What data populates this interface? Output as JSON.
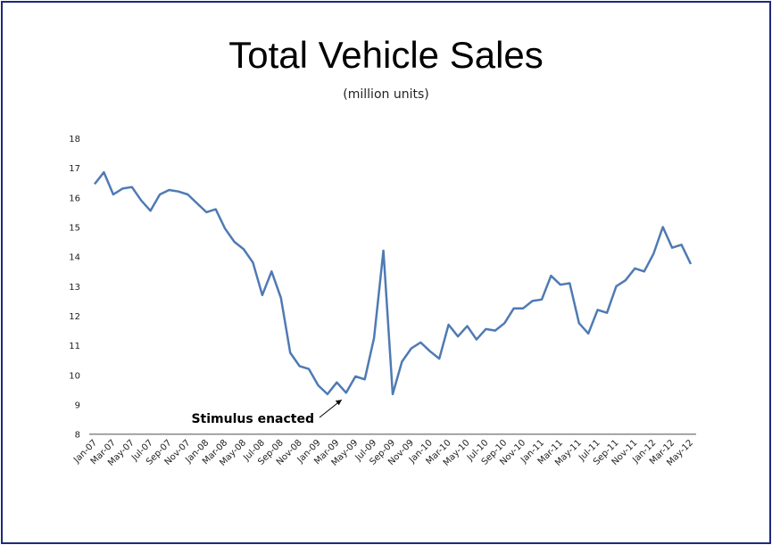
{
  "chart_data": {
    "type": "line",
    "title": "Total Vehicle Sales",
    "subtitle": "(million units)",
    "xlabel": "",
    "ylabel": "",
    "ylim": [
      8,
      18
    ],
    "yticks": [
      8,
      9,
      10,
      11,
      12,
      13,
      14,
      15,
      16,
      17,
      18
    ],
    "grid": false,
    "x": [
      "Jan-07",
      "Feb-07",
      "Mar-07",
      "Apr-07",
      "May-07",
      "Jun-07",
      "Jul-07",
      "Aug-07",
      "Sep-07",
      "Oct-07",
      "Nov-07",
      "Dec-07",
      "Jan-08",
      "Feb-08",
      "Mar-08",
      "Apr-08",
      "May-08",
      "Jun-08",
      "Jul-08",
      "Aug-08",
      "Sep-08",
      "Oct-08",
      "Nov-08",
      "Dec-08",
      "Jan-09",
      "Feb-09",
      "Mar-09",
      "Apr-09",
      "May-09",
      "Jun-09",
      "Jul-09",
      "Aug-09",
      "Sep-09",
      "Oct-09",
      "Nov-09",
      "Dec-09",
      "Jan-10",
      "Feb-10",
      "Mar-10",
      "Apr-10",
      "May-10",
      "Jun-10",
      "Jul-10",
      "Aug-10",
      "Sep-10",
      "Oct-10",
      "Nov-10",
      "Dec-10",
      "Jan-11",
      "Feb-11",
      "Mar-11",
      "Apr-11",
      "May-11",
      "Jun-11",
      "Jul-11",
      "Aug-11",
      "Sep-11",
      "Oct-11",
      "Nov-11",
      "Dec-11",
      "Jan-12",
      "Feb-12",
      "Mar-12",
      "Apr-12",
      "May-12"
    ],
    "xtick_labels": [
      "Jan-07",
      "Mar-07",
      "May-07",
      "Jul-07",
      "Sep-07",
      "Nov-07",
      "Jan-08",
      "Mar-08",
      "May-08",
      "Jul-08",
      "Sep-08",
      "Nov-08",
      "Jan-09",
      "Mar-09",
      "May-09",
      "Jul-09",
      "Sep-09",
      "Nov-09",
      "Jan-10",
      "Mar-10",
      "May-10",
      "Jul-10",
      "Sep-10",
      "Nov-10",
      "Jan-11",
      "Mar-11",
      "May-11",
      "Jul-11",
      "Sep-11",
      "Nov-11",
      "Jan-12",
      "Mar-12",
      "May-12"
    ],
    "series": [
      {
        "color": "#4f7ab3",
        "values": [
          16.45,
          16.85,
          16.1,
          16.3,
          16.35,
          15.9,
          15.55,
          16.1,
          16.25,
          16.2,
          16.1,
          15.8,
          15.5,
          15.6,
          14.95,
          14.5,
          14.25,
          13.8,
          12.7,
          13.5,
          12.6,
          10.75,
          10.3,
          10.2,
          9.65,
          9.35,
          9.75,
          9.4,
          9.95,
          9.85,
          11.25,
          14.2,
          9.35,
          10.45,
          10.9,
          11.1,
          10.8,
          10.55,
          11.7,
          11.3,
          11.65,
          11.2,
          11.55,
          11.5,
          11.75,
          12.25,
          12.25,
          12.5,
          12.55,
          13.35,
          13.05,
          13.1,
          11.75,
          11.4,
          12.2,
          12.1,
          13.0,
          13.2,
          13.6,
          13.5,
          14.1,
          15.0,
          14.3,
          14.4,
          13.75
        ]
      }
    ],
    "annotations": [
      {
        "text": "Stimulus enacted",
        "points_to": "Apr-09"
      }
    ]
  },
  "frame_color": "#1f2a7a"
}
